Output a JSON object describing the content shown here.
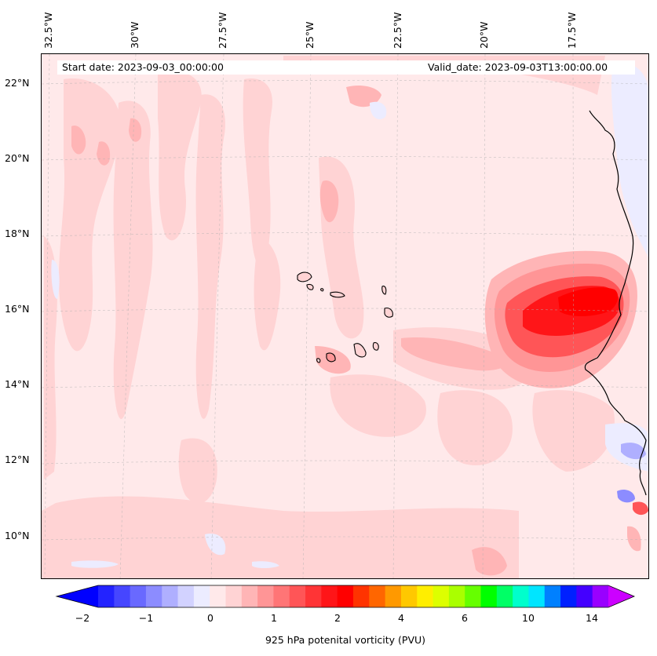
{
  "header": {
    "start_date": "Start date: 2023-09-03_00:00:00",
    "valid_date": "Valid_date: 2023-09-03T13:00:00.00"
  },
  "axes": {
    "lon_labels": [
      "32.5°W",
      "30°W",
      "27.5°W",
      "25°W",
      "22.5°W",
      "20°W",
      "17.5°W"
    ],
    "lat_labels": [
      "22°N",
      "20°N",
      "18°N",
      "16°N",
      "14°N",
      "12°N",
      "10°N"
    ]
  },
  "colorbar": {
    "label": "925 hPa potenital vorticity (PVU)",
    "ticks": [
      "−2",
      "−1",
      "0",
      "1",
      "2",
      "4",
      "6",
      "10",
      "14"
    ],
    "colors": [
      "#0000ff",
      "#2323ff",
      "#4646ff",
      "#6969ff",
      "#8c8cff",
      "#afafff",
      "#d2d2ff",
      "#ececff",
      "#ffe9ea",
      "#ffd3d4",
      "#ffb5b6",
      "#ff9596",
      "#ff7576",
      "#ff5557",
      "#ff3436",
      "#ff1518",
      "#ff0000",
      "#ff3300",
      "#ff6600",
      "#ff9900",
      "#ffc800",
      "#ffee00",
      "#ddff00",
      "#aaff00",
      "#66ff00",
      "#00ff00",
      "#00ff66",
      "#00ffcc",
      "#00e5ff",
      "#0080ff",
      "#0020ff",
      "#4400ff",
      "#9900ff",
      "#cc00ff"
    ]
  },
  "map": {
    "region": "Eastern tropical Atlantic, Cape Verde Islands and West African coast",
    "field_colors": {
      "background": "#ffe9ea",
      "light_pink": "#ffd3d4",
      "pink": "#ffb5b6",
      "salmon": "#ff9596",
      "red_medium": "#ff5557",
      "red_strong": "#ff1518",
      "blue_light": "#ececff",
      "blue_medium": "#8c8cff"
    }
  }
}
